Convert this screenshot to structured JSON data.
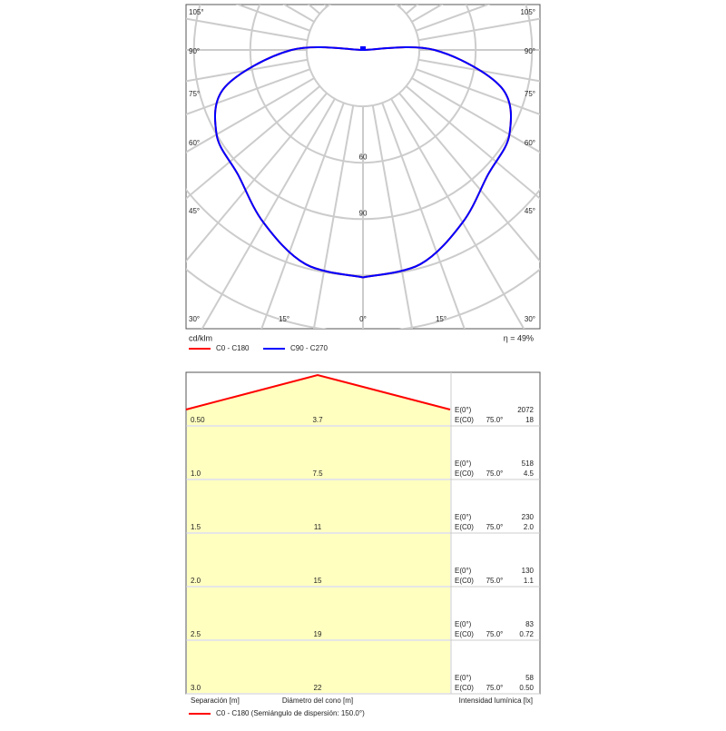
{
  "polar": {
    "left_angle_labels": [
      "105°",
      "90°",
      "75°",
      "60°",
      "45°",
      "30°"
    ],
    "right_angle_labels": [
      "105°",
      "90°",
      "75°",
      "60°",
      "45°",
      "30°"
    ],
    "bottom_angle_labels": [
      "15°",
      "0°",
      "15°"
    ],
    "radial_ticks": [
      60,
      90
    ],
    "unit": "cd/klm",
    "efficiency": "η = 49%",
    "gamma": [
      0,
      15,
      30,
      45,
      60,
      75,
      90,
      105
    ],
    "series": [
      {
        "name": "C0 - C180",
        "color": "#ff0000",
        "values": [
          121,
          118,
          106,
          94,
          90,
          76,
          38,
          0
        ]
      },
      {
        "name": "C90 - C270",
        "color": "#0000ff",
        "values": [
          121,
          118,
          106,
          94,
          90,
          76,
          38,
          0
        ]
      }
    ]
  },
  "cone": {
    "rows": [
      {
        "separation": "0.50",
        "diameter": "3.7",
        "e0_label": "E(0°)",
        "e0": "2072",
        "ec0_label": "E(C0)",
        "angle": "75.0°",
        "ec0": "18"
      },
      {
        "separation": "1.0",
        "diameter": "7.5",
        "e0_label": "E(0°)",
        "e0": "518",
        "ec0_label": "E(C0)",
        "angle": "75.0°",
        "ec0": "4.5"
      },
      {
        "separation": "1.5",
        "diameter": "11",
        "e0_label": "E(0°)",
        "e0": "230",
        "ec0_label": "E(C0)",
        "angle": "75.0°",
        "ec0": "2.0"
      },
      {
        "separation": "2.0",
        "diameter": "15",
        "e0_label": "E(0°)",
        "e0": "130",
        "ec0_label": "E(C0)",
        "angle": "75.0°",
        "ec0": "1.1"
      },
      {
        "separation": "2.5",
        "diameter": "19",
        "e0_label": "E(0°)",
        "e0": "83",
        "ec0_label": "E(C0)",
        "angle": "75.0°",
        "ec0": "0.72"
      },
      {
        "separation": "3.0",
        "diameter": "22",
        "e0_label": "E(0°)",
        "e0": "58",
        "ec0_label": "E(C0)",
        "angle": "75.0°",
        "ec0": "0.50"
      }
    ],
    "separation_label": "Separación [m]",
    "diameter_label": "Diámetro del cono [m]",
    "intensity_label": "Intensidad lumínica [lx]",
    "legend": "C0 - C180 (Semiángulo de dispersión: 150.0°)"
  }
}
